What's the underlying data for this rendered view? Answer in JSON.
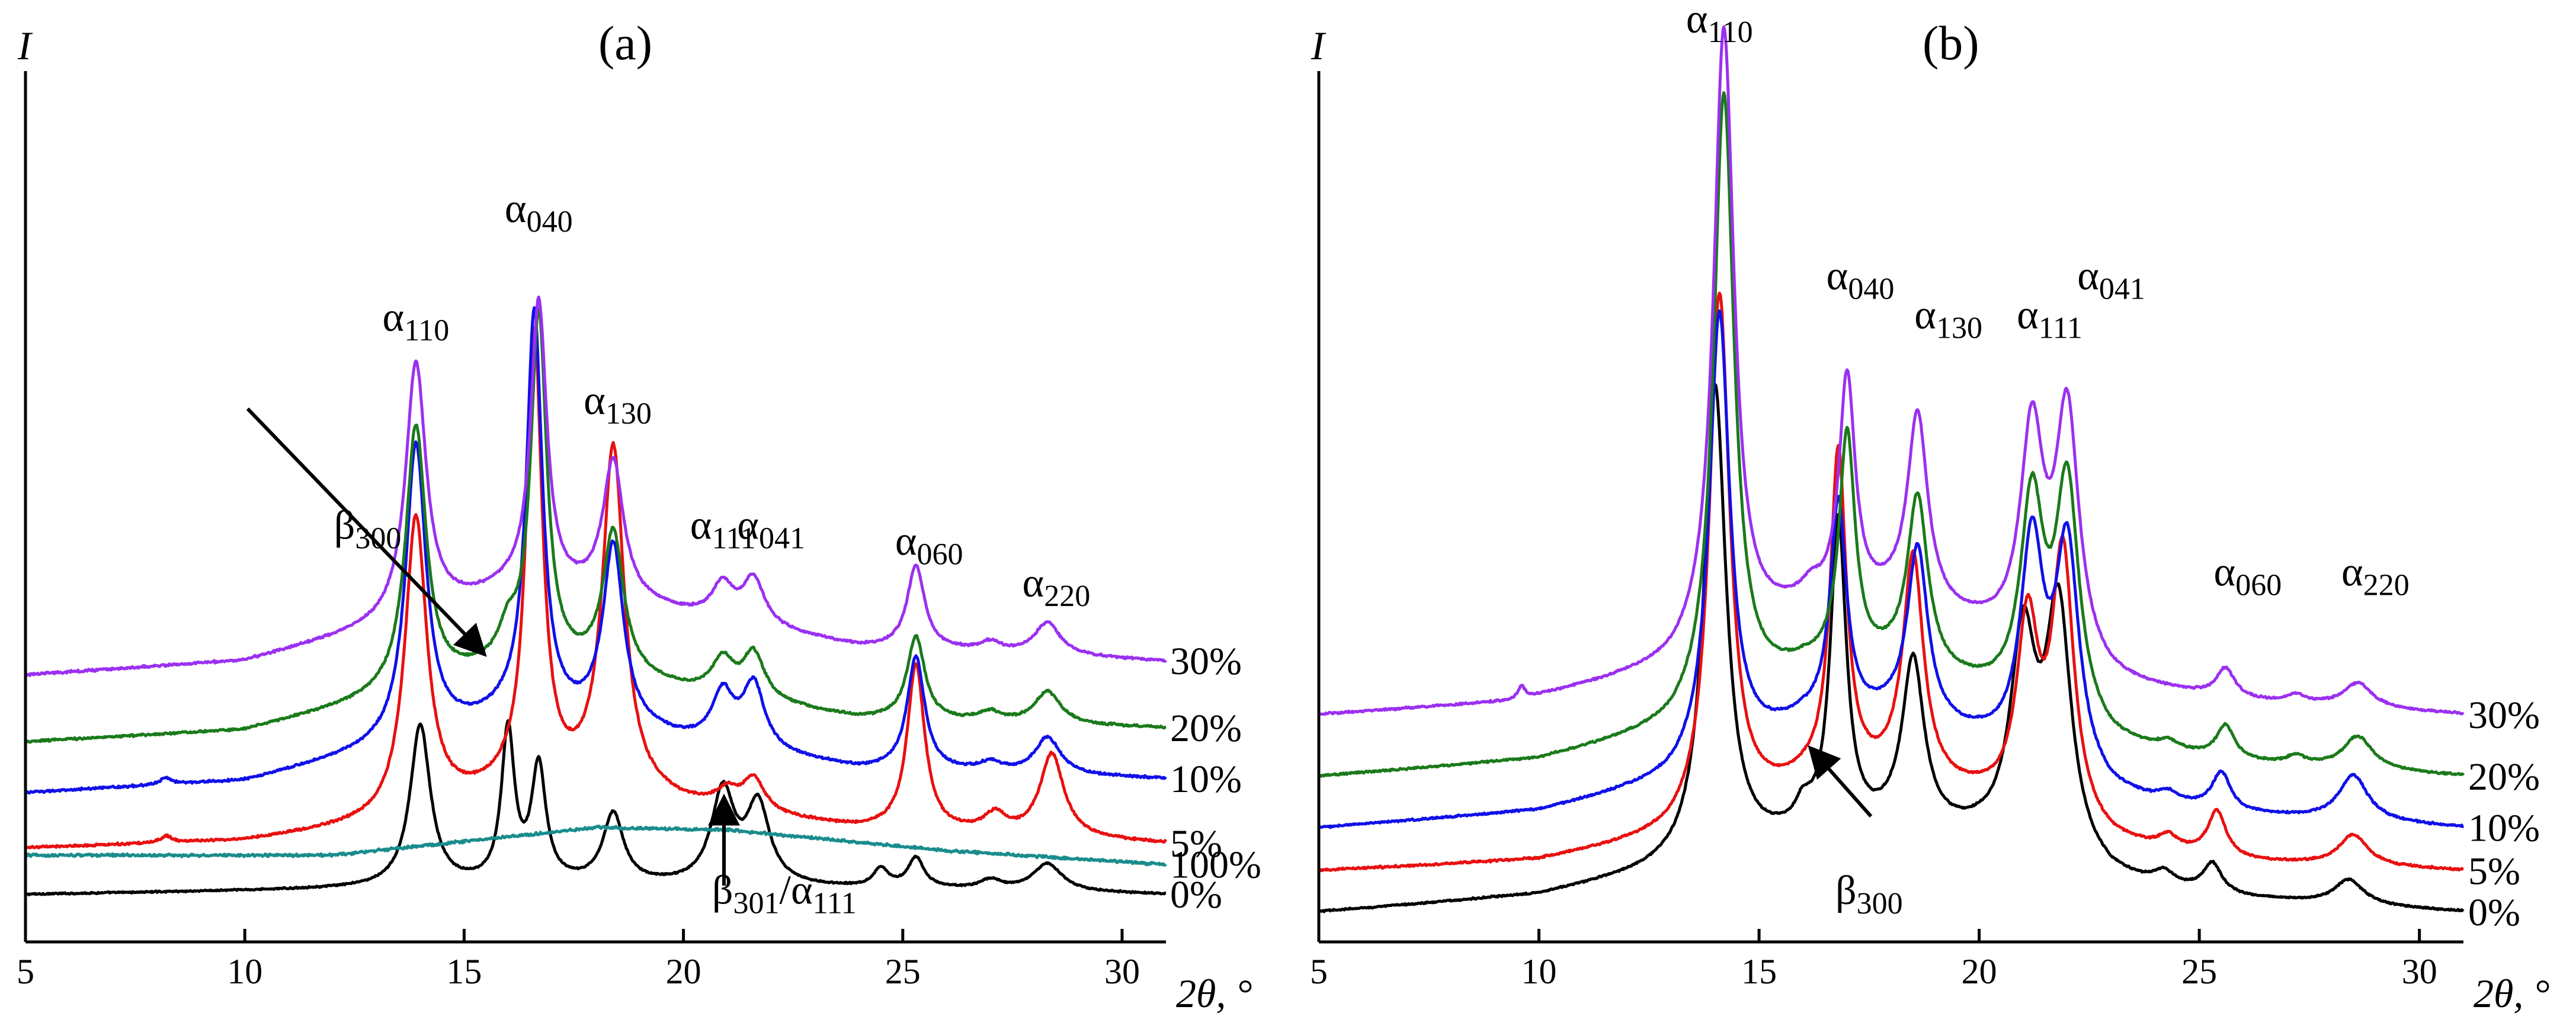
{
  "chart_data": [
    {
      "type": "line",
      "title": "(a)",
      "xlabel": "2θ, °",
      "ylabel": "I",
      "xlim": [
        5,
        31
      ],
      "xticks": [
        5,
        10,
        15,
        20,
        25,
        30
      ],
      "y_ticks_shown": false,
      "grid": false,
      "series": [
        {
          "name": "0%",
          "color": "#000000",
          "baseline": 0,
          "noise": 0.4,
          "bg": [
            [
              5,
              0
            ],
            [
              18,
              4
            ],
            [
              26,
              2
            ],
            [
              31,
              0
            ]
          ],
          "peaks": [
            [
              14.0,
              70,
              0.28
            ],
            [
              16.0,
              66,
              0.18
            ],
            [
              16.7,
              50,
              0.2
            ],
            [
              18.4,
              30,
              0.28
            ],
            [
              20.9,
              40,
              0.32
            ],
            [
              21.7,
              34,
              0.32
            ],
            [
              24.5,
              8,
              0.2
            ],
            [
              25.3,
              13,
              0.22
            ],
            [
              27.0,
              4,
              0.3
            ],
            [
              28.3,
              12,
              0.4
            ]
          ]
        },
        {
          "name": "100%",
          "color": "#1a8c8c",
          "baseline": 17,
          "noise": 0.7,
          "bg": [
            [
              5,
              0
            ],
            [
              12,
              0
            ],
            [
              18,
              12
            ],
            [
              21,
              11
            ],
            [
              26,
              2
            ],
            [
              31,
              -4
            ]
          ],
          "peaks": []
        },
        {
          "name": "5%",
          "color": "#e81010",
          "baseline": 20,
          "noise": 0.6,
          "bg": [
            [
              5,
              0
            ],
            [
              10,
              3
            ],
            [
              13,
              10
            ],
            [
              16,
              24
            ],
            [
              18,
              25
            ],
            [
              20,
              18
            ],
            [
              24,
              8
            ],
            [
              31,
              2
            ]
          ],
          "peaks": [
            [
              8.2,
              3,
              0.15
            ],
            [
              13.9,
              128,
              0.3
            ],
            [
              16.6,
              195,
              0.22
            ],
            [
              18.4,
              148,
              0.3
            ],
            [
              21.0,
              7,
              0.3
            ],
            [
              21.6,
              14,
              0.3
            ],
            [
              25.3,
              72,
              0.24
            ],
            [
              27.1,
              8,
              0.3
            ],
            [
              28.4,
              36,
              0.33
            ]
          ]
        },
        {
          "name": "10%",
          "color": "#1010e8",
          "baseline": 44,
          "noise": 0.6,
          "bg": [
            [
              5,
              0
            ],
            [
              10,
              5
            ],
            [
              13,
              18
            ],
            [
              16,
              32
            ],
            [
              18,
              30
            ],
            [
              20,
              22
            ],
            [
              24,
              10
            ],
            [
              31,
              6
            ]
          ],
          "peaks": [
            [
              8.2,
              3,
              0.15
            ],
            [
              13.9,
              128,
              0.28
            ],
            [
              16.6,
              175,
              0.22
            ],
            [
              18.4,
              77,
              0.28
            ],
            [
              20.9,
              22,
              0.3
            ],
            [
              21.6,
              28,
              0.3
            ],
            [
              25.3,
              49,
              0.24
            ],
            [
              27.0,
              4,
              0.3
            ],
            [
              28.3,
              16,
              0.35
            ]
          ]
        },
        {
          "name": "20%",
          "color": "#1a7a1a",
          "baseline": 66,
          "noise": 0.6,
          "bg": [
            [
              5,
              0
            ],
            [
              10,
              5
            ],
            [
              13,
              18
            ],
            [
              16,
              32
            ],
            [
              18,
              30
            ],
            [
              20,
              22
            ],
            [
              24,
              10
            ],
            [
              31,
              6
            ]
          ],
          "peaks": [
            [
              13.9,
              114,
              0.28
            ],
            [
              16.0,
              12,
              0.25
            ],
            [
              16.7,
              152,
              0.22
            ],
            [
              18.4,
              61,
              0.28
            ],
            [
              20.9,
              15,
              0.3
            ],
            [
              21.6,
              20,
              0.3
            ],
            [
              25.3,
              36,
              0.24
            ],
            [
              27.0,
              4,
              0.3
            ],
            [
              28.3,
              14,
              0.35
            ]
          ]
        },
        {
          "name": "30%",
          "color": "#9b30f0",
          "baseline": 95,
          "noise": 0.6,
          "bg": [
            [
              5,
              0
            ],
            [
              10,
              6
            ],
            [
              13,
              20
            ],
            [
              16,
              36
            ],
            [
              18,
              34
            ],
            [
              20,
              26
            ],
            [
              24,
              12
            ],
            [
              31,
              6
            ]
          ],
          "peaks": [
            [
              13.9,
              110,
              0.28
            ],
            [
              16.7,
              125,
              0.22
            ],
            [
              18.4,
              59,
              0.28
            ],
            [
              20.9,
              15,
              0.3
            ],
            [
              21.6,
              20,
              0.3
            ],
            [
              25.3,
              36,
              0.24
            ],
            [
              27.0,
              4,
              0.3
            ],
            [
              28.3,
              14,
              0.35
            ]
          ]
        }
      ],
      "annotations": [
        {
          "base": "α",
          "sub": "110",
          "x": 13.9,
          "y": 244
        },
        {
          "base": "α",
          "sub": "040",
          "x": 16.7,
          "y": 291
        },
        {
          "base": "α",
          "sub": "130",
          "x": 18.5,
          "y": 208
        },
        {
          "base": "α",
          "sub": "111",
          "x": 20.9,
          "y": 154
        },
        {
          "base": "α",
          "sub": "041",
          "x": 22.0,
          "y": 154
        },
        {
          "base": "α",
          "sub": "060",
          "x": 25.6,
          "y": 147
        },
        {
          "base": "α",
          "sub": "220",
          "x": 28.5,
          "y": 129
        },
        {
          "base": "β",
          "sub": "300",
          "x": 12.8,
          "y": 154
        },
        {
          "base": "β",
          "sub": "301",
          "sep": "/",
          "base2": "α",
          "sub2": "111",
          "x": 22.3,
          "y": -4
        }
      ]
    },
    {
      "type": "line",
      "title": "(b)",
      "xlabel": "2θ, °",
      "ylabel": "I",
      "xlim": [
        5,
        31
      ],
      "xticks": [
        5,
        10,
        15,
        20,
        25,
        30
      ],
      "y_ticks_shown": false,
      "grid": false,
      "series": [
        {
          "name": "0%",
          "color": "#000000",
          "baseline": 0,
          "noise": 0.5,
          "bg": [
            [
              5,
              0
            ],
            [
              10,
              8
            ],
            [
              13,
              20
            ],
            [
              16,
              35
            ],
            [
              18,
              38
            ],
            [
              20,
              34
            ],
            [
              23,
              14
            ],
            [
              26,
              6
            ],
            [
              31,
              0
            ]
          ],
          "peaks": [
            [
              14.0,
              230,
              0.3
            ],
            [
              16.0,
              9,
              0.2
            ],
            [
              16.8,
              150,
              0.22
            ],
            [
              18.5,
              82,
              0.3
            ],
            [
              21.0,
              100,
              0.35
            ],
            [
              21.8,
              120,
              0.35
            ],
            [
              24.2,
              6,
              0.25
            ],
            [
              25.3,
              14,
              0.25
            ],
            [
              28.4,
              12,
              0.4
            ]
          ]
        },
        {
          "name": "5%",
          "color": "#e81010",
          "baseline": 20,
          "noise": 0.6,
          "bg": [
            [
              5,
              0
            ],
            [
              10,
              5
            ],
            [
              13,
              16
            ],
            [
              16,
              40
            ],
            [
              18,
              42
            ],
            [
              20,
              34
            ],
            [
              23,
              12
            ],
            [
              26,
              4
            ],
            [
              31,
              0
            ]
          ],
          "peaks": [
            [
              14.1,
              255,
              0.28
            ],
            [
              16.8,
              160,
              0.22
            ],
            [
              18.5,
              110,
              0.28
            ],
            [
              21.1,
              90,
              0.3
            ],
            [
              21.9,
              130,
              0.3
            ],
            [
              24.3,
              6,
              0.25
            ],
            [
              25.4,
              22,
              0.25
            ],
            [
              28.5,
              15,
              0.4
            ]
          ]
        },
        {
          "name": "10%",
          "color": "#1010e8",
          "baseline": 41,
          "noise": 0.6,
          "bg": [
            [
              5,
              0
            ],
            [
              10,
              8
            ],
            [
              13,
              22
            ],
            [
              16,
              50
            ],
            [
              18,
              52
            ],
            [
              20,
              40
            ],
            [
              23,
              14
            ],
            [
              26,
              6
            ],
            [
              31,
              0
            ]
          ],
          "peaks": [
            [
              14.1,
              218,
              0.28
            ],
            [
              16.8,
              105,
              0.22
            ],
            [
              18.6,
              85,
              0.28
            ],
            [
              21.2,
              105,
              0.32
            ],
            [
              22.0,
              110,
              0.32
            ],
            [
              24.3,
              4,
              0.25
            ],
            [
              25.5,
              18,
              0.25
            ],
            [
              28.5,
              22,
              0.4
            ]
          ]
        },
        {
          "name": "20%",
          "color": "#1a7a1a",
          "baseline": 66,
          "noise": 0.6,
          "bg": [
            [
              5,
              0
            ],
            [
              10,
              8
            ],
            [
              13,
              22
            ],
            [
              16,
              50
            ],
            [
              18,
              52
            ],
            [
              20,
              40
            ],
            [
              23,
              14
            ],
            [
              26,
              6
            ],
            [
              31,
              0
            ]
          ],
          "peaks": [
            [
              14.2,
              298,
              0.28
            ],
            [
              17.0,
              112,
              0.22
            ],
            [
              18.6,
              84,
              0.28
            ],
            [
              21.2,
              100,
              0.32
            ],
            [
              22.0,
              115,
              0.32
            ],
            [
              24.3,
              4,
              0.25
            ],
            [
              25.6,
              16,
              0.25
            ],
            [
              27.2,
              4,
              0.25
            ],
            [
              28.6,
              16,
              0.4
            ]
          ]
        },
        {
          "name": "30%",
          "color": "#9b30f0",
          "baseline": 96,
          "noise": 0.6,
          "bg": [
            [
              5,
              0
            ],
            [
              9.4,
              6
            ],
            [
              13,
              22
            ],
            [
              16,
              50
            ],
            [
              18,
              52
            ],
            [
              20,
              40
            ],
            [
              23,
              14
            ],
            [
              26,
              6
            ],
            [
              31,
              0
            ]
          ],
          "peaks": [
            [
              9.6,
              6,
              0.1
            ],
            [
              14.2,
              300,
              0.28
            ],
            [
              16.2,
              6,
              0.2
            ],
            [
              17.0,
              110,
              0.22
            ],
            [
              18.6,
              94,
              0.28
            ],
            [
              21.2,
              104,
              0.32
            ],
            [
              22.0,
              120,
              0.32
            ],
            [
              25.6,
              14,
              0.25
            ],
            [
              27.2,
              4,
              0.25
            ],
            [
              28.6,
              12,
              0.4
            ]
          ]
        }
      ],
      "annotations": [
        {
          "base": "α",
          "sub": "110",
          "x": 14.1,
          "y": 428
        },
        {
          "base": "α",
          "sub": "040",
          "x": 17.3,
          "y": 303
        },
        {
          "base": "α",
          "sub": "130",
          "x": 19.3,
          "y": 284
        },
        {
          "base": "α",
          "sub": "111",
          "x": 21.6,
          "y": 284
        },
        {
          "base": "α",
          "sub": "041",
          "x": 23.0,
          "y": 303
        },
        {
          "base": "α",
          "sub": "060",
          "x": 26.1,
          "y": 159
        },
        {
          "base": "α",
          "sub": "220",
          "x": 29.0,
          "y": 159
        },
        {
          "base": "β",
          "sub": "300",
          "x": 17.5,
          "y": 4
        }
      ]
    }
  ]
}
